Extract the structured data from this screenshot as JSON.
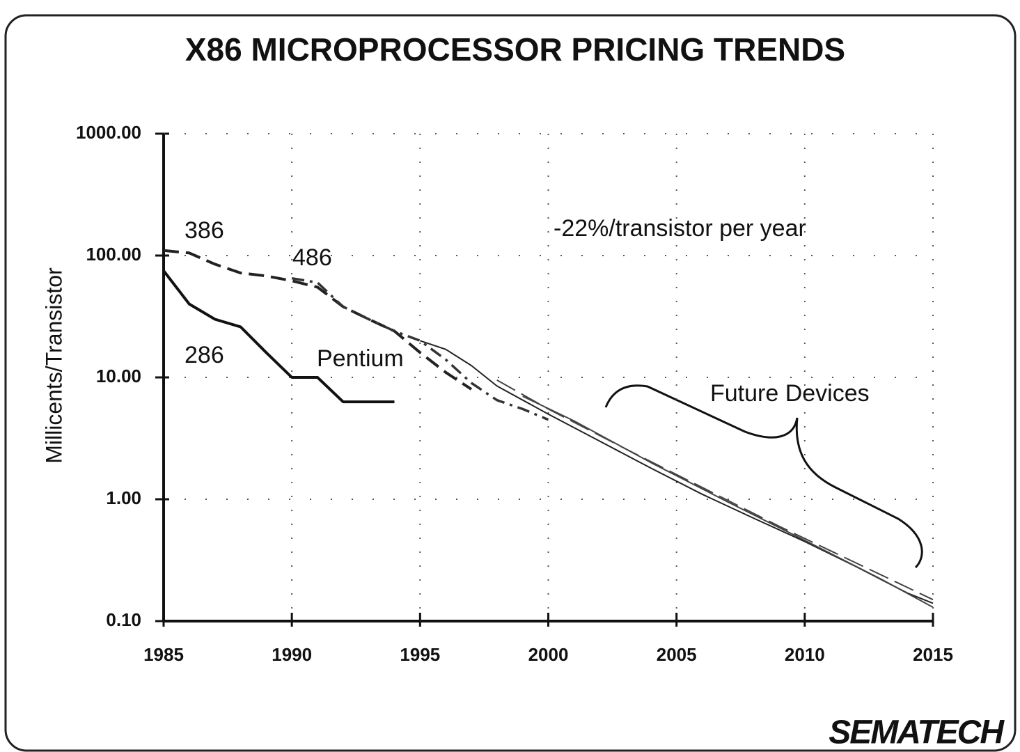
{
  "chart_data": {
    "type": "line",
    "title": "X86 MICROPROCESSOR PRICING TRENDS",
    "y_label": "Millicents/Transistor",
    "log_y": true,
    "grid": true,
    "xlim": [
      1985,
      2015
    ],
    "ylim": [
      0.1,
      1000
    ],
    "xticks": [
      1985,
      1990,
      1995,
      2000,
      2005,
      2010,
      2015
    ],
    "yticks": [
      {
        "value": 0.1,
        "label": "0.10"
      },
      {
        "value": 1,
        "label": "1.00"
      },
      {
        "value": 10,
        "label": "10.00"
      },
      {
        "value": 100,
        "label": "100.00"
      },
      {
        "value": 1000,
        "label": "1000.00"
      }
    ],
    "series": [
      {
        "name": "286",
        "color": "#111111",
        "style": "thick",
        "x": [
          1985,
          1986,
          1987,
          1988,
          1989,
          1990,
          1991,
          1992,
          1993,
          1994
        ],
        "values": [
          75,
          40,
          30,
          26,
          16,
          10,
          10,
          6.3,
          6.3,
          6.3
        ]
      },
      {
        "name": "386",
        "color": "#222222",
        "style": "dashed",
        "x": [
          1985,
          1986,
          1987,
          1988,
          1989,
          1990,
          1991,
          1992,
          1993,
          1994,
          1995,
          1996,
          1997
        ],
        "values": [
          110,
          105,
          85,
          72,
          68,
          62,
          55,
          38,
          30,
          24,
          16,
          11,
          8
        ]
      },
      {
        "name": "486",
        "color": "#333333",
        "style": "dashdot",
        "x": [
          1990,
          1991,
          1992,
          1993,
          1994,
          1995,
          1996,
          1997,
          1998,
          1999,
          2000
        ],
        "values": [
          65,
          60,
          38,
          30,
          24,
          20,
          14,
          9,
          6.5,
          5.5,
          4.5
        ]
      },
      {
        "name": "Pentium",
        "color": "#222222",
        "style": "thin",
        "x": [
          1995,
          1996,
          1997,
          1998,
          2000,
          2002,
          2004,
          2006,
          2008,
          2010,
          2012,
          2014,
          2015
        ],
        "values": [
          20,
          17,
          12.5,
          8.5,
          5,
          3,
          1.8,
          1.1,
          0.7,
          0.45,
          0.28,
          0.17,
          0.14
        ]
      },
      {
        "color": "#444444",
        "style": "thindash",
        "x": [
          1998,
          2000,
          2003,
          2006,
          2009,
          2012,
          2015
        ],
        "values": [
          9.5,
          5.5,
          2.6,
          1.25,
          0.6,
          0.3,
          0.15
        ]
      },
      {
        "color": "#444444",
        "style": "thin",
        "x": [
          1999,
          2001,
          2004,
          2007,
          2010,
          2013,
          2015
        ],
        "values": [
          7,
          4.4,
          2.0,
          0.95,
          0.46,
          0.22,
          0.13
        ]
      }
    ],
    "annotations": [
      "-22%/transistor per year",
      "Future Devices",
      "SEMATECH"
    ]
  }
}
